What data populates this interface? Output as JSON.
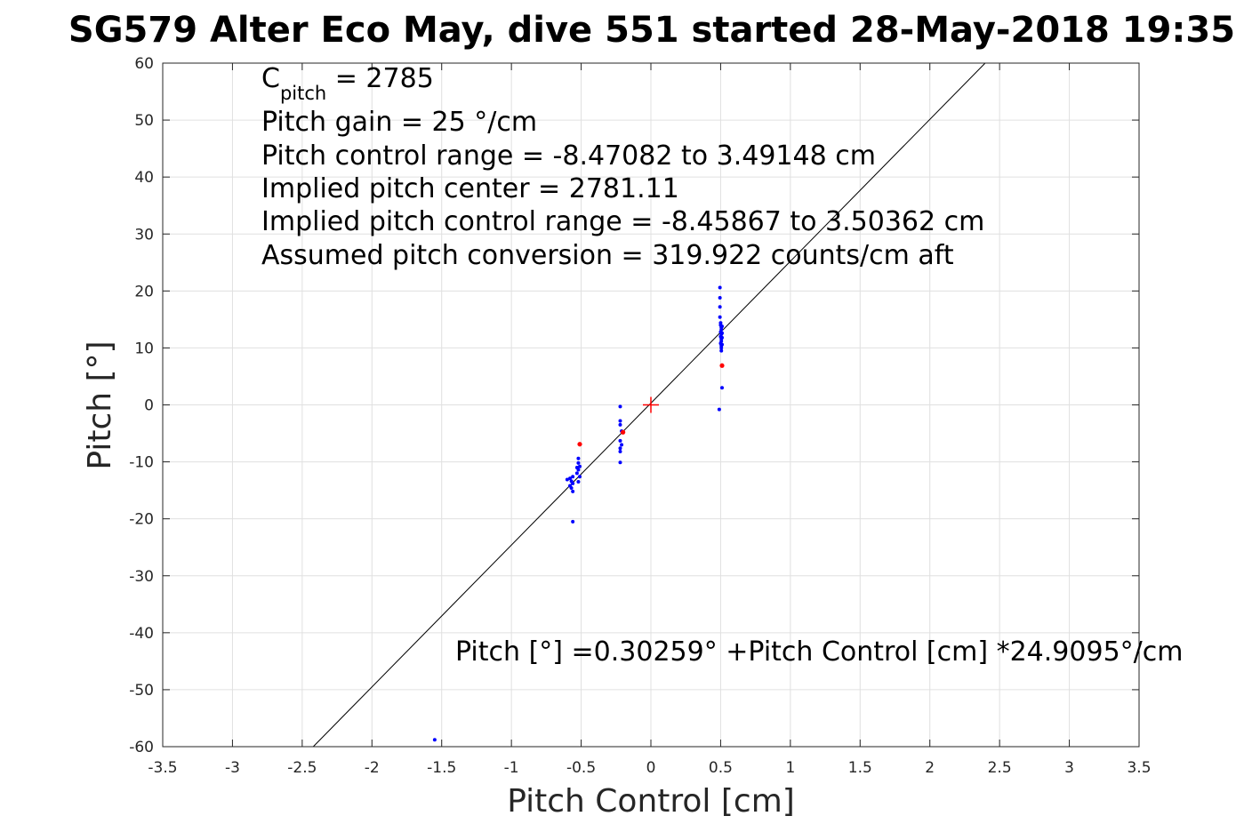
{
  "chart_data": {
    "type": "scatter",
    "title": "SG579 Alter Eco May, dive 551 started 28-May-2018 19:35",
    "xlabel": "Pitch Control [cm]",
    "ylabel": "Pitch [°]",
    "xlim": [
      -3.5,
      3.5
    ],
    "ylim": [
      -60,
      60
    ],
    "xticks": [
      -3.5,
      -3,
      -2.5,
      -2,
      -1.5,
      -1,
      -0.5,
      0,
      0.5,
      1,
      1.5,
      2,
      2.5,
      3,
      3.5
    ],
    "xtick_labels": [
      "-3.5",
      "-3",
      "-2.5",
      "-2",
      "-1.5",
      "-1",
      "-0.5",
      "0",
      "0.5",
      "1",
      "1.5",
      "2",
      "2.5",
      "3",
      "3.5"
    ],
    "yticks": [
      -60,
      -50,
      -40,
      -30,
      -20,
      -10,
      0,
      10,
      20,
      30,
      40,
      50,
      60
    ],
    "ytick_labels": [
      "-60",
      "-50",
      "-40",
      "-30",
      "-20",
      "-10",
      "0",
      "10",
      "20",
      "30",
      "40",
      "50",
      "60"
    ],
    "grid": true,
    "annotations": {
      "cpitch_base": "C",
      "cpitch_sub": "pitch",
      "cpitch_rest": " = 2785",
      "lines": [
        "Pitch gain = 25 °/cm",
        "Pitch control range = -8.47082 to 3.49148 cm",
        "Implied pitch center = 2781.11",
        "Implied pitch control range = -8.45867 to 3.50362 cm",
        "Assumed pitch conversion = 319.922 counts/cm aft"
      ],
      "fit_text": "Pitch [°] =0.30259° +Pitch Control [cm] *24.9095°/cm"
    },
    "fit_line": {
      "intercept": 0.30259,
      "slope": 24.9095,
      "color": "#000000"
    },
    "center_marker": {
      "x": 0,
      "y": 0,
      "color": "#ff0000"
    },
    "series": [
      {
        "color": "#0000ff",
        "points": [
          [
            0.495,
            20.6
          ],
          [
            0.495,
            18.8
          ],
          [
            0.495,
            17.2
          ],
          [
            0.495,
            15.4
          ],
          [
            0.5,
            14.4
          ],
          [
            0.5,
            14.0
          ],
          [
            0.505,
            13.6
          ],
          [
            0.505,
            13.2
          ],
          [
            0.5,
            12.8
          ],
          [
            0.505,
            12.4
          ],
          [
            0.5,
            12.0
          ],
          [
            0.505,
            11.6
          ],
          [
            0.505,
            11.2
          ],
          [
            0.5,
            10.8
          ],
          [
            0.505,
            10.4
          ],
          [
            0.505,
            10.0
          ],
          [
            0.505,
            9.5
          ],
          [
            0.51,
            12.6
          ],
          [
            0.51,
            11.8
          ],
          [
            0.51,
            13.8
          ],
          [
            0.51,
            10.6
          ],
          [
            0.51,
            3.0
          ],
          [
            0.49,
            -0.8
          ],
          [
            -0.22,
            -0.3
          ],
          [
            -0.22,
            -2.8
          ],
          [
            -0.22,
            -3.5
          ],
          [
            -0.21,
            -4.6
          ],
          [
            -0.22,
            -6.3
          ],
          [
            -0.21,
            -7.0
          ],
          [
            -0.22,
            -7.6
          ],
          [
            -0.22,
            -8.2
          ],
          [
            -0.22,
            -10.1
          ],
          [
            -0.52,
            -9.4
          ],
          [
            -0.52,
            -10.2
          ],
          [
            -0.51,
            -10.8
          ],
          [
            -0.52,
            -11.4
          ],
          [
            -0.53,
            -12.0
          ],
          [
            -0.51,
            -12.6
          ],
          [
            -0.52,
            -13.5
          ],
          [
            -0.53,
            -11.0
          ],
          [
            -0.56,
            -12.6
          ],
          [
            -0.58,
            -12.9
          ],
          [
            -0.6,
            -13.1
          ],
          [
            -0.57,
            -13.4
          ],
          [
            -0.56,
            -13.8
          ],
          [
            -0.58,
            -14.2
          ],
          [
            -0.57,
            -14.6
          ],
          [
            -0.56,
            -15.2
          ],
          [
            -0.56,
            -20.5
          ],
          [
            -1.55,
            -58.8
          ]
        ]
      },
      {
        "color": "#ff0000",
        "points": [
          [
            0.51,
            6.9
          ],
          [
            -0.51,
            -6.9
          ],
          [
            -0.2,
            -4.8
          ]
        ]
      }
    ]
  }
}
